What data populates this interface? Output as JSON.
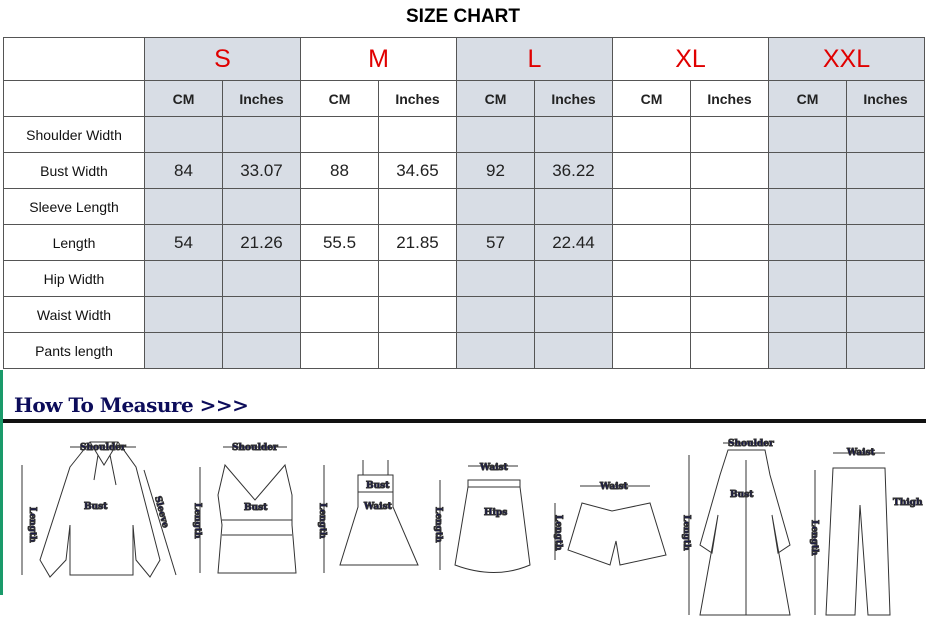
{
  "title": "SIZE CHART",
  "sizes": [
    "S",
    "M",
    "L",
    "XL",
    "XXL"
  ],
  "units": [
    "CM",
    "Inches"
  ],
  "rows": [
    {
      "label": "Shoulder Width",
      "values": [
        "",
        "",
        "",
        "",
        "",
        "",
        "",
        "",
        "",
        ""
      ]
    },
    {
      "label": "Bust Width",
      "values": [
        "84",
        "33.07",
        "88",
        "34.65",
        "92",
        "36.22",
        "",
        "",
        "",
        ""
      ]
    },
    {
      "label": "Sleeve Length",
      "values": [
        "",
        "",
        "",
        "",
        "",
        "",
        "",
        "",
        "",
        ""
      ]
    },
    {
      "label": "Length",
      "values": [
        "54",
        "21.26",
        "55.5",
        "21.85",
        "57",
        "22.44",
        "",
        "",
        "",
        ""
      ]
    },
    {
      "label": "Hip Width",
      "values": [
        "",
        "",
        "",
        "",
        "",
        "",
        "",
        "",
        "",
        ""
      ]
    },
    {
      "label": "Waist Width",
      "values": [
        "",
        "",
        "",
        "",
        "",
        "",
        "",
        "",
        "",
        ""
      ]
    },
    {
      "label": "Pants length",
      "values": [
        "",
        "",
        "",
        "",
        "",
        "",
        "",
        "",
        "",
        ""
      ]
    }
  ],
  "colors": {
    "size_label": "#e00000",
    "shaded_column": "#d8dde5",
    "measure_title": "#0c0c5a"
  },
  "how_to_measure": {
    "title": "How To Measure >>>",
    "labels": {
      "shoulder": "Shoulder",
      "bust": "Bust",
      "length": "Length",
      "sleeve": "Sleeve",
      "waist": "Waist",
      "hips": "Hips",
      "thigh": "Thigh"
    }
  }
}
